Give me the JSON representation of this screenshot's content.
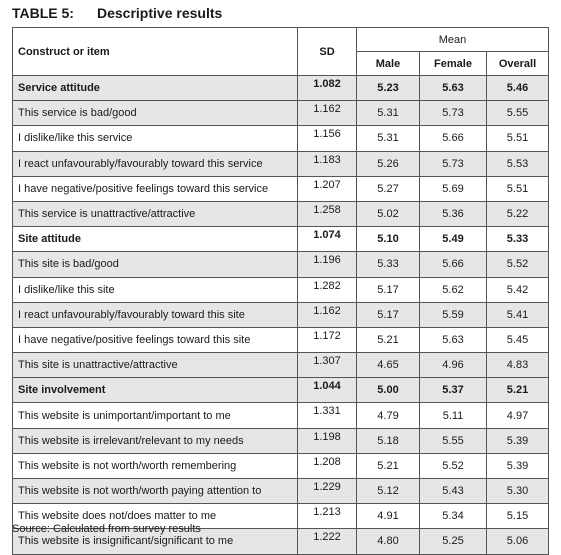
{
  "caption": {
    "number": "TABLE 5:",
    "title": "Descriptive results"
  },
  "headers": {
    "construct": "Construct or item",
    "sd": "SD",
    "mean": "Mean",
    "male": "Male",
    "female": "Female",
    "overall": "Overall"
  },
  "rows": [
    {
      "label": "Service attitude",
      "sd": "1.082",
      "male": "5.23",
      "female": "5.63",
      "overall": "5.46",
      "group": true,
      "shaded": true
    },
    {
      "label": "This service is bad/good",
      "sd": "1.162",
      "male": "5.31",
      "female": "5.73",
      "overall": "5.55",
      "group": false,
      "shaded": true
    },
    {
      "label": "I dislike/like this service",
      "sd": "1.156",
      "male": "5.31",
      "female": "5.66",
      "overall": "5.51",
      "group": false,
      "shaded": false
    },
    {
      "label": "I react unfavourably/favourably toward this service",
      "sd": "1.183",
      "male": "5.26",
      "female": "5.73",
      "overall": "5.53",
      "group": false,
      "shaded": true
    },
    {
      "label": "I have negative/positive feelings toward this service",
      "sd": "1.207",
      "male": "5.27",
      "female": "5.69",
      "overall": "5.51",
      "group": false,
      "shaded": false
    },
    {
      "label": "This service is unattractive/attractive",
      "sd": "1.258",
      "male": "5.02",
      "female": "5.36",
      "overall": "5.22",
      "group": false,
      "shaded": true
    },
    {
      "label": "Site attitude",
      "sd": "1.074",
      "male": "5.10",
      "female": "5.49",
      "overall": "5.33",
      "group": true,
      "shaded": false
    },
    {
      "label": "This site is bad/good",
      "sd": "1.196",
      "male": "5.33",
      "female": "5.66",
      "overall": "5.52",
      "group": false,
      "shaded": true
    },
    {
      "label": "I dislike/like this site",
      "sd": "1.282",
      "male": "5.17",
      "female": "5.62",
      "overall": "5.42",
      "group": false,
      "shaded": false
    },
    {
      "label": "I react unfavourably/favourably toward this site",
      "sd": "1.162",
      "male": "5.17",
      "female": "5.59",
      "overall": "5.41",
      "group": false,
      "shaded": true
    },
    {
      "label": "I have negative/positive feelings toward this site",
      "sd": "1.172",
      "male": "5.21",
      "female": "5.63",
      "overall": "5.45",
      "group": false,
      "shaded": false
    },
    {
      "label": "This site is unattractive/attractive",
      "sd": "1.307",
      "male": "4.65",
      "female": "4.96",
      "overall": "4.83",
      "group": false,
      "shaded": true
    },
    {
      "label": "Site involvement",
      "sd": "1.044",
      "male": "5.00",
      "female": "5.37",
      "overall": "5.21",
      "group": true,
      "shaded": true
    },
    {
      "label": "This website is unimportant/important to me",
      "sd": "1.331",
      "male": "4.79",
      "female": "5.11",
      "overall": "4.97",
      "group": false,
      "shaded": false
    },
    {
      "label": "This website is irrelevant/relevant to my needs",
      "sd": "1.198",
      "male": "5.18",
      "female": "5.55",
      "overall": "5.39",
      "group": false,
      "shaded": true
    },
    {
      "label": "This website is not worth/worth remembering",
      "sd": "1.208",
      "male": "5.21",
      "female": "5.52",
      "overall": "5.39",
      "group": false,
      "shaded": false
    },
    {
      "label": "This website is not worth/worth paying attention to",
      "sd": "1.229",
      "male": "5.12",
      "female": "5.43",
      "overall": "5.30",
      "group": false,
      "shaded": true
    },
    {
      "label": "This website does not/does matter to me",
      "sd": "1.213",
      "male": "4.91",
      "female": "5.34",
      "overall": "5.15",
      "group": false,
      "shaded": false
    },
    {
      "label": "This website is insignificant/significant to me",
      "sd": "1.222",
      "male": "4.80",
      "female": "5.25",
      "overall": "5.06",
      "group": false,
      "shaded": true
    }
  ],
  "source": "Source: Calculated from survey results"
}
